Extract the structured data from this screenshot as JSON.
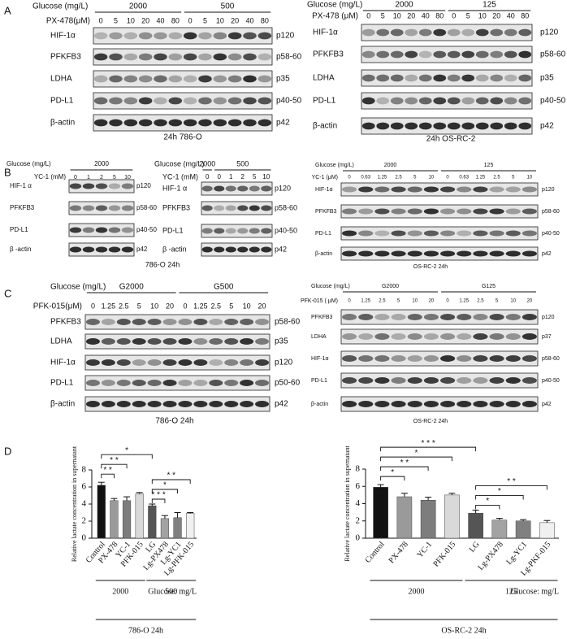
{
  "panel_labels": [
    "A",
    "B",
    "C",
    "D"
  ],
  "blots": [
    {
      "glucose_label": "Glucose (mg/L)",
      "groups": [
        "2000",
        "500"
      ],
      "drug_label": "PX-478(μM)",
      "doses": [
        "0",
        "5",
        "10",
        "20",
        "40",
        "80",
        "0",
        "5",
        "10",
        "20",
        "40",
        "80"
      ],
      "proteins": [
        "HIF-1α",
        "PFKFB3",
        "LDHA",
        "PD-L1",
        "β-actin"
      ],
      "sizes": [
        "p120",
        "p58-60",
        "p35",
        "p40-50",
        "p42"
      ],
      "caption": "24h  786-O"
    },
    {
      "glucose_label": "Glucose (mg/L)",
      "groups": [
        "2000",
        "125"
      ],
      "drug_label": "PX-478 (μM)",
      "doses": [
        "0",
        "5",
        "10",
        "20",
        "40",
        "80",
        "0",
        "5",
        "10",
        "20",
        "40",
        "80"
      ],
      "proteins": [
        "HIF-1α",
        "PFKFB3",
        "LDHA",
        "PD-L1",
        "β-actin"
      ],
      "sizes": [
        "p120",
        "p58-60",
        "p35",
        "p40-50",
        "p42"
      ],
      "caption": "24h  OS-RC-2"
    },
    {
      "glucose_label": "Glucose (mg/L)",
      "groups": [
        "2000"
      ],
      "drug_label": "YC-1 (mM)",
      "doses": [
        "0",
        "1",
        "2",
        "5",
        "10"
      ],
      "proteins": [
        "HIF-1 α",
        "PFKFB3",
        "PD-L1",
        "β -actin"
      ],
      "sizes": [
        "p120",
        "p58-60",
        "p40-50",
        "p42"
      ]
    },
    {
      "glucose_label": "Glucose (mg/L)",
      "groups": [
        "2000",
        "500"
      ],
      "drug_label": "YC-1 (mM)",
      "doses": [
        "0",
        "0",
        "1",
        "2",
        "5",
        "10"
      ],
      "proteins": [
        "HIF-1 α",
        "PFKFB3",
        "PD-L1",
        "β -actin"
      ],
      "sizes": [
        "p120",
        "p58-60",
        "p40-50",
        "p42"
      ],
      "caption": "786-O  24h"
    },
    {
      "glucose_label": "Glucose (mg/L)",
      "groups": [
        "2000",
        "125"
      ],
      "drug_label": "YC-1 (μM)",
      "doses": [
        "0",
        "0.63",
        "1.25",
        "2.5",
        "5",
        "10",
        "0",
        "0.63",
        "1.25",
        "2.5",
        "5",
        "10"
      ],
      "proteins": [
        "HIF-1α",
        "PFKFB3",
        "PD-L1",
        "β-actin"
      ],
      "sizes": [
        "p120",
        "p58-60",
        "p40-50",
        "p42"
      ],
      "caption": "OS-RC-2  24h"
    },
    {
      "glucose_label": "Glucose (mg/L)",
      "groups": [
        "G2000",
        "G500"
      ],
      "drug_label": "PFK-015(μM)",
      "doses": [
        "0",
        "1.25",
        "2.5",
        "5",
        "10",
        "20",
        "0",
        "1.25",
        "2.5",
        "5",
        "10",
        "20"
      ],
      "proteins": [
        "PFKFB3",
        "LDHA",
        "HIF-1α",
        "PD-L1",
        "β-actin"
      ],
      "sizes": [
        "p58-60",
        "p35",
        "p120",
        "p50-60",
        "p42"
      ],
      "caption": "786-O  24h"
    },
    {
      "glucose_label": "Glucose (mg/L)",
      "groups": [
        "G2000",
        "G125"
      ],
      "drug_label": "PFK-015 ( μM)",
      "doses": [
        "0",
        "1.25",
        "2.5",
        "5",
        "10",
        "20",
        "0",
        "1.25",
        "2.5",
        "5",
        "10",
        "20"
      ],
      "proteins": [
        "PFKFB3",
        "LDHA",
        "HIF-1α",
        "PD-L1",
        "β-actin"
      ],
      "sizes": [
        "p120",
        "p37",
        "p58-60",
        "p40-50",
        "p42"
      ],
      "caption": "OS-RC-2  24h"
    }
  ],
  "chart_data": [
    {
      "type": "bar",
      "ylabel": "Relative lactate concentration in supernatant",
      "categories": [
        "Control",
        "PX-478",
        "YC-1",
        "PFK-015",
        "LG",
        "Lg-PX478",
        "Lg-YC1",
        "Lg-PFK-015"
      ],
      "values": [
        6.2,
        4.4,
        4.4,
        5.2,
        3.8,
        2.3,
        2.4,
        2.9
      ],
      "errors": [
        0.35,
        0.25,
        0.45,
        0.15,
        0.2,
        0.35,
        0.6,
        0.1
      ],
      "colors": [
        "#111111",
        "#9a9a9a",
        "#7d7d7d",
        "#d9d9d9",
        "#555555",
        "#a3a3a3",
        "#808080",
        "#f0f0f0"
      ],
      "ylim": [
        0,
        8
      ],
      "yticks": [
        0,
        2,
        4,
        6,
        8
      ],
      "comparisons": [
        {
          "between": [
            0,
            1
          ],
          "label": "* *"
        },
        {
          "between": [
            0,
            2
          ],
          "label": "* *"
        },
        {
          "between": [
            0,
            4
          ],
          "label": "*"
        },
        {
          "between": [
            4,
            5
          ],
          "label": "* * *"
        },
        {
          "between": [
            4,
            6
          ],
          "label": "*"
        },
        {
          "between": [
            4,
            7
          ],
          "label": "*  *"
        }
      ],
      "groups": [
        "2000",
        "500"
      ],
      "unit": "Glucose: mg/L",
      "caption": "786-O  24h"
    },
    {
      "type": "bar",
      "ylabel": "Relative lactate concentration in supernatant",
      "categories": [
        "Control",
        "PX-478",
        "YC-1",
        "PFK-015",
        "LG",
        "Lg-PX478",
        "Lg-YC1",
        "Lg-PKF-015"
      ],
      "values": [
        5.9,
        4.8,
        4.4,
        5.0,
        2.9,
        2.1,
        2.0,
        1.8
      ],
      "errors": [
        0.3,
        0.4,
        0.35,
        0.2,
        0.35,
        0.2,
        0.15,
        0.25
      ],
      "colors": [
        "#111111",
        "#9a9a9a",
        "#7d7d7d",
        "#d9d9d9",
        "#555555",
        "#a3a3a3",
        "#808080",
        "#f0f0f0"
      ],
      "ylim": [
        0,
        8
      ],
      "yticks": [
        0,
        2,
        4,
        6,
        8
      ],
      "comparisons": [
        {
          "between": [
            0,
            1
          ],
          "label": "*"
        },
        {
          "between": [
            0,
            2
          ],
          "label": "* *"
        },
        {
          "between": [
            0,
            3
          ],
          "label": "*"
        },
        {
          "between": [
            0,
            4
          ],
          "label": "*    *    *"
        },
        {
          "between": [
            4,
            5
          ],
          "label": "*"
        },
        {
          "between": [
            4,
            6
          ],
          "label": "*"
        },
        {
          "between": [
            4,
            7
          ],
          "label": "* *"
        }
      ],
      "groups": [
        "2000",
        "125"
      ],
      "unit": "Glucose: mg/L",
      "caption": "OS-RC-2 24h"
    }
  ]
}
